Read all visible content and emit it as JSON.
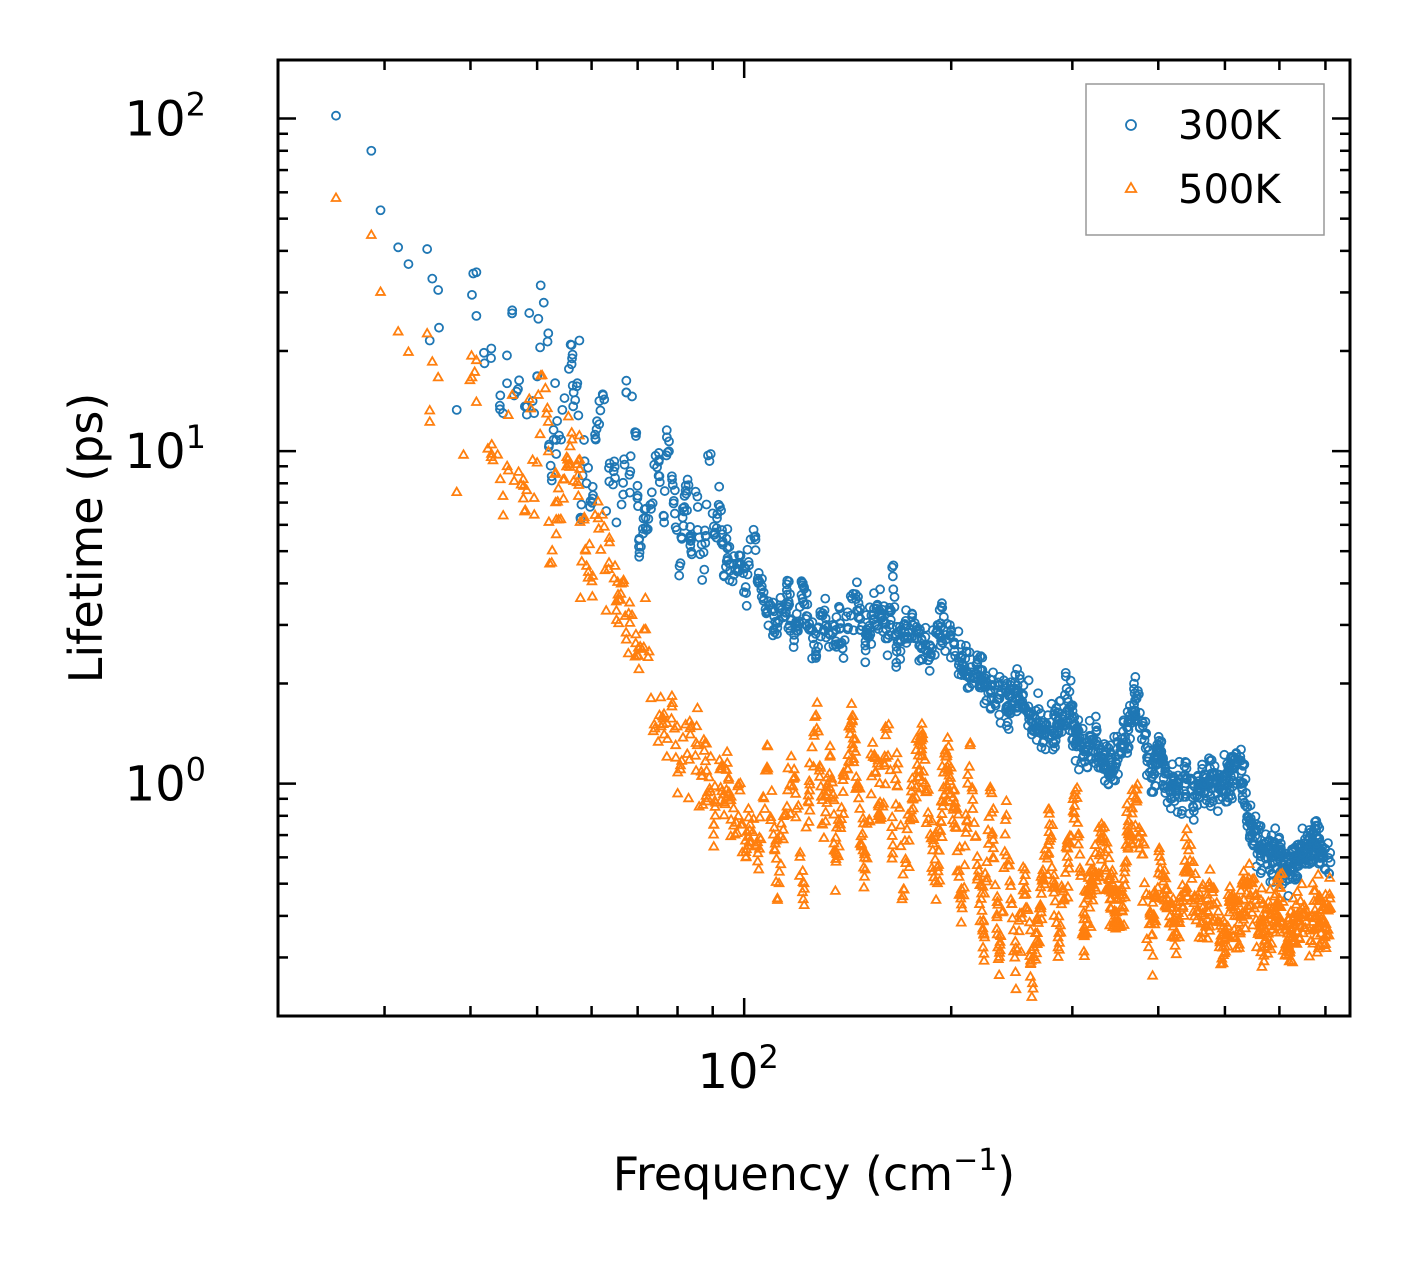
{
  "chart_data": {
    "type": "scatter",
    "title": "",
    "xlabel": {
      "text": "Frequency (cm",
      "sup": "−1",
      "suffix": ")"
    },
    "ylabel": "Lifetime (ps)",
    "xscale": "log",
    "yscale": "log",
    "xlim": [
      21,
      760
    ],
    "ylim": [
      0.2,
      150
    ],
    "x_ticks": [
      {
        "value": 100,
        "base": "10",
        "exp": "2"
      }
    ],
    "y_ticks": [
      {
        "value": 1,
        "base": "10",
        "exp": "0"
      },
      {
        "value": 10,
        "base": "10",
        "exp": "1"
      },
      {
        "value": 100,
        "base": "10",
        "exp": "2"
      }
    ],
    "grid": false,
    "legend": {
      "position": "top-right",
      "frame": true
    },
    "series": [
      {
        "name": "300K",
        "marker": "circle",
        "color": "#1f77b4",
        "points": [
          [
            25.5,
            102
          ],
          [
            28.7,
            80
          ],
          [
            29.6,
            53
          ],
          [
            31.4,
            41
          ],
          [
            32.5,
            36.5
          ],
          [
            34.6,
            40.5
          ],
          [
            35.2,
            33
          ],
          [
            35.9,
            30.5
          ],
          [
            36,
            23.5
          ],
          [
            34.9,
            21.5
          ],
          [
            38.2,
            13.3
          ],
          [
            40.2,
            29.5
          ],
          [
            40.8,
            34.5
          ],
          [
            40.8,
            25.5
          ],
          [
            44.2,
            14.7
          ],
          [
            44.6,
            13
          ],
          [
            46,
            26.5
          ],
          [
            46.3,
            14.7
          ],
          [
            48.3,
            13.6
          ],
          [
            48.7,
            26
          ],
          [
            49.5,
            13
          ],
          [
            50,
            16.8
          ],
          [
            50.2,
            25
          ],
          [
            50.6,
            31.5
          ],
          [
            50.5,
            20.5
          ],
          [
            51.9,
            22.6
          ],
          [
            53.1,
            16
          ],
          [
            53.3,
            9.8
          ],
          [
            52.5,
            8.4
          ],
          [
            52,
            10.3
          ],
          [
            53.3,
            10.8
          ],
          [
            56.2,
            19
          ],
          [
            57.2,
            16
          ],
          [
            56.5,
            15
          ],
          [
            57.4,
            12.8
          ],
          [
            57.6,
            21.5
          ],
          [
            58.5,
            10.8
          ],
          [
            59,
            8
          ],
          [
            57.8,
            6.3
          ],
          [
            60.2,
            7.2
          ],
          [
            60.7,
            11.2
          ],
          [
            62.6,
            14.3
          ],
          [
            63,
            6.6
          ],
          [
            63.6,
            8.9
          ],
          [
            64.9,
            8.3
          ],
          [
            65.2,
            6.1
          ],
          [
            66.7,
            7.4
          ],
          [
            67.4,
            15
          ],
          [
            68.7,
            14.6
          ],
          [
            69.4,
            11.4
          ],
          [
            69.6,
            11.1
          ],
          [
            67,
            9.1
          ],
          [
            68.2,
            7.5
          ],
          [
            70.3,
            5.4
          ],
          [
            71.9,
            6.3
          ],
          [
            73.2,
            6.7
          ],
          [
            74,
            9.1
          ],
          [
            75.3,
            8.4
          ],
          [
            76.5,
            6.1
          ],
          [
            77.2,
            11
          ],
          [
            78.5,
            8.4
          ],
          [
            79.5,
            5.9
          ],
          [
            80.8,
            4.6
          ],
          [
            82.2,
            7.6
          ],
          [
            83,
            7.9
          ],
          [
            83.5,
            5.2
          ],
          [
            85.5,
            7.3
          ],
          [
            86,
            5.5
          ],
          [
            87.5,
            4.4
          ],
          [
            88.6,
            9.7
          ],
          [
            89.4,
            9.8
          ],
          [
            90.3,
            5.6
          ],
          [
            92.2,
            6.8
          ],
          [
            93.5,
            4.2
          ],
          [
            94.5,
            5.1
          ],
          [
            97,
            4.4
          ],
          [
            98.6,
            4.6
          ],
          [
            100.5,
            3.9
          ],
          [
            103.2,
            5.8
          ],
          [
            105,
            4.3
          ],
          [
            106.8,
            3.6
          ],
          [
            108,
            3.3
          ],
          [
            110.3,
            2.9
          ],
          [
            112.4,
            3.1
          ],
          [
            115.4,
            3.7
          ],
          [
            118.2,
            2.8
          ],
          [
            120.5,
            3.4
          ],
          [
            122.2,
            3.9
          ],
          [
            124.5,
            2.9
          ],
          [
            127.2,
            2.5
          ],
          [
            130,
            3.2
          ],
          [
            133.3,
            2.8
          ],
          [
            136,
            2.9
          ],
          [
            140,
            2.7
          ],
          [
            143.5,
            3.6
          ],
          [
            146.7,
            3.3
          ],
          [
            150,
            2.6
          ],
          [
            154,
            3.1
          ],
          [
            158,
            3.2
          ],
          [
            162.2,
            2.8
          ],
          [
            164.5,
            4.2
          ],
          [
            166.6,
            2.5
          ],
          [
            170.5,
            3
          ],
          [
            175.5,
            2.9
          ],
          [
            181.2,
            2.7
          ],
          [
            186.5,
            2.4
          ],
          [
            191,
            3
          ],
          [
            196.4,
            2.8
          ],
          [
            202.2,
            2.5
          ],
          [
            207.5,
            2.3
          ],
          [
            213,
            2.1
          ],
          [
            218.2,
            2.3
          ],
          [
            223,
            2
          ],
          [
            228,
            1.9
          ],
          [
            235,
            1.8
          ],
          [
            240.6,
            1.7
          ],
          [
            248,
            1.9
          ],
          [
            256,
            1.7
          ],
          [
            262.5,
            1.6
          ],
          [
            270,
            1.5
          ],
          [
            278,
            1.4
          ],
          [
            286,
            1.5
          ],
          [
            295,
            1.8
          ],
          [
            303,
            1.45
          ],
          [
            312,
            1.25
          ],
          [
            322,
            1.35
          ],
          [
            332,
            1.2
          ],
          [
            342,
            1.1
          ],
          [
            352,
            1.25
          ],
          [
            362,
            1.45
          ],
          [
            372,
            1.8
          ],
          [
            382,
            1.35
          ],
          [
            392,
            1.05
          ],
          [
            402,
            1.3
          ],
          [
            412,
            0.98
          ],
          [
            425,
            0.95
          ],
          [
            438,
            1
          ],
          [
            452,
            0.92
          ],
          [
            466,
            1
          ],
          [
            480,
            1.02
          ],
          [
            496,
            1
          ],
          [
            510,
            1.05
          ],
          [
            524,
            1.18
          ],
          [
            538,
            0.85
          ],
          [
            552,
            0.72
          ],
          [
            568,
            0.63
          ],
          [
            584,
            0.6
          ],
          [
            600,
            0.62
          ],
          [
            616,
            0.55
          ],
          [
            632,
            0.58
          ],
          [
            648,
            0.62
          ],
          [
            664,
            0.64
          ],
          [
            680,
            0.66
          ],
          [
            696,
            0.6
          ],
          [
            712,
            0.58
          ]
        ]
      },
      {
        "name": "500K",
        "marker": "triangle",
        "color": "#ff7f0e",
        "points": [
          [
            25.5,
            57.5
          ],
          [
            28.7,
            44.5
          ],
          [
            29.6,
            30
          ],
          [
            31.4,
            22.8
          ],
          [
            32.5,
            19.8
          ],
          [
            34.6,
            22.5
          ],
          [
            35.2,
            18.5
          ],
          [
            35.9,
            16.6
          ],
          [
            34.9,
            13.2
          ],
          [
            34.9,
            12.2
          ],
          [
            38.2,
            7.5
          ],
          [
            40.2,
            16.6
          ],
          [
            40.8,
            18.7
          ],
          [
            40.8,
            14
          ],
          [
            44.2,
            8.2
          ],
          [
            44.6,
            7.3
          ],
          [
            46,
            14.7
          ],
          [
            46.3,
            8.1
          ],
          [
            48.3,
            7.6
          ],
          [
            48.7,
            14.3
          ],
          [
            49.5,
            7.2
          ],
          [
            50,
            9.2
          ],
          [
            50.2,
            14.7
          ],
          [
            50.6,
            16.8
          ],
          [
            50.5,
            11.2
          ],
          [
            51.9,
            12.2
          ],
          [
            53.1,
            8.5
          ],
          [
            53.3,
            5.6
          ],
          [
            52.5,
            4.6
          ],
          [
            52,
            6.1
          ],
          [
            53.3,
            6.2
          ],
          [
            56.2,
            10.8
          ],
          [
            57.2,
            9.1
          ],
          [
            56.5,
            8.1
          ],
          [
            57.4,
            7.3
          ],
          [
            57.6,
            11.1
          ],
          [
            58.5,
            6.2
          ],
          [
            59,
            4.5
          ],
          [
            57.8,
            3.6
          ],
          [
            60.2,
            4.2
          ],
          [
            60.7,
            6.4
          ],
          [
            62.6,
            5.9
          ],
          [
            63,
            3.3
          ],
          [
            63.6,
            4.6
          ],
          [
            64.9,
            4.5
          ],
          [
            65.2,
            3.3
          ],
          [
            66.7,
            4
          ],
          [
            67.4,
            2.7
          ],
          [
            68.7,
            3.2
          ],
          [
            69.4,
            2.4
          ],
          [
            69.6,
            2.8
          ],
          [
            70.3,
            2.2
          ],
          [
            71.9,
            2.9
          ],
          [
            73.2,
            1.8
          ],
          [
            74,
            1.5
          ],
          [
            75.3,
            1.6
          ],
          [
            76.5,
            1.4
          ],
          [
            77.2,
            1.2
          ],
          [
            78.5,
            1.7
          ],
          [
            79.5,
            1.3
          ],
          [
            80.8,
            1.1
          ],
          [
            82.2,
            1.5
          ],
          [
            83,
            0.9
          ],
          [
            83.5,
            1.4
          ],
          [
            85.5,
            1.3
          ],
          [
            86,
            0.85
          ],
          [
            87.5,
            1.25
          ],
          [
            88.6,
            0.9
          ],
          [
            89.4,
            1.2
          ],
          [
            90.3,
            0.75
          ],
          [
            92.2,
            1.1
          ],
          [
            93.5,
            0.8
          ],
          [
            94.5,
            1.15
          ],
          [
            97,
            0.7
          ],
          [
            98.6,
            0.95
          ],
          [
            100.5,
            0.62
          ],
          [
            103.2,
            0.78
          ],
          [
            105,
            0.55
          ],
          [
            106.8,
            0.9
          ],
          [
            108,
            1.3
          ],
          [
            110.3,
            0.7
          ],
          [
            112.4,
            0.5
          ],
          [
            115.4,
            0.85
          ],
          [
            118.2,
            1.1
          ],
          [
            120.5,
            0.6
          ],
          [
            122.2,
            0.5
          ],
          [
            124.5,
            0.95
          ],
          [
            127.2,
            1.6
          ],
          [
            130,
            0.75
          ],
          [
            133.3,
            1.2
          ],
          [
            136,
            0.58
          ],
          [
            140,
            1.05
          ],
          [
            143.5,
            1.55
          ],
          [
            146.7,
            0.9
          ],
          [
            150,
            0.55
          ],
          [
            154,
            1.2
          ],
          [
            158,
            0.8
          ],
          [
            162.2,
            1.5
          ],
          [
            164.5,
            0.65
          ],
          [
            166.6,
            1.1
          ],
          [
            170.5,
            0.48
          ],
          [
            175.5,
            0.9
          ],
          [
            181.2,
            1.3
          ],
          [
            186.5,
            0.7
          ],
          [
            191,
            0.5
          ],
          [
            196.4,
            1.2
          ],
          [
            202.2,
            0.85
          ],
          [
            207.5,
            0.42
          ],
          [
            213,
            1.3
          ],
          [
            218.2,
            0.6
          ],
          [
            223,
            0.35
          ],
          [
            228,
            0.95
          ],
          [
            235,
            0.3
          ],
          [
            240.6,
            0.8
          ],
          [
            248,
            0.27
          ],
          [
            256,
            0.55
          ],
          [
            262.5,
            0.25
          ],
          [
            270,
            0.42
          ],
          [
            278,
            0.75
          ],
          [
            286,
            0.3
          ],
          [
            295,
            0.6
          ],
          [
            303,
            0.95
          ],
          [
            312,
            0.35
          ],
          [
            322,
            0.55
          ],
          [
            332,
            0.68
          ],
          [
            342,
            0.45
          ],
          [
            352,
            0.38
          ],
          [
            362,
            0.72
          ],
          [
            372,
            0.88
          ],
          [
            382,
            0.5
          ],
          [
            392,
            0.35
          ],
          [
            402,
            0.6
          ],
          [
            412,
            0.42
          ],
          [
            425,
            0.35
          ],
          [
            438,
            0.55
          ],
          [
            452,
            0.45
          ],
          [
            466,
            0.4
          ],
          [
            480,
            0.48
          ],
          [
            496,
            0.32
          ],
          [
            510,
            0.45
          ],
          [
            524,
            0.38
          ],
          [
            538,
            0.5
          ],
          [
            552,
            0.42
          ],
          [
            568,
            0.35
          ],
          [
            584,
            0.4
          ],
          [
            600,
            0.45
          ],
          [
            616,
            0.32
          ],
          [
            632,
            0.38
          ],
          [
            648,
            0.42
          ],
          [
            664,
            0.36
          ],
          [
            680,
            0.4
          ],
          [
            696,
            0.38
          ],
          [
            712,
            0.42
          ]
        ]
      }
    ]
  }
}
